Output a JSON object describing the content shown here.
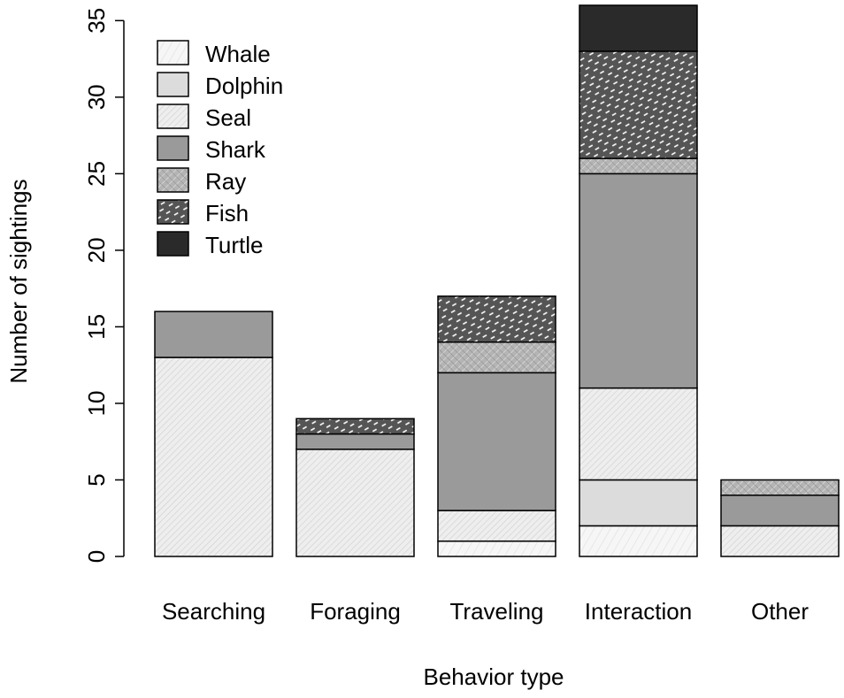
{
  "chart_data": {
    "type": "bar",
    "stacked": true,
    "title": "",
    "xlabel": "Behavior type",
    "ylabel": "Number of sightings",
    "ylim": [
      0,
      36
    ],
    "yticks": [
      "0",
      "5",
      "10",
      "15",
      "20",
      "25",
      "30",
      "35"
    ],
    "grid": false,
    "legend_position": "top-left",
    "categories": [
      "Searching",
      "Foraging",
      "Traveling",
      "Interaction",
      "Other"
    ],
    "series": [
      {
        "name": "Whale",
        "values": [
          0,
          0,
          1,
          2,
          0
        ],
        "color": "#f4f4f4",
        "pattern": "light-hatch"
      },
      {
        "name": "Dolphin",
        "values": [
          0,
          0,
          0,
          3,
          0
        ],
        "color": "#dcdcdc",
        "pattern": "none"
      },
      {
        "name": "Seal",
        "values": [
          13,
          7,
          2,
          6,
          2
        ],
        "color": "#ececec",
        "pattern": "dense-hatch"
      },
      {
        "name": "Shark",
        "values": [
          3,
          1,
          9,
          14,
          2
        ],
        "color": "#9a9a9a",
        "pattern": "none"
      },
      {
        "name": "Ray",
        "values": [
          0,
          0,
          2,
          1,
          1
        ],
        "color": "#b4b4b4",
        "pattern": "crosshatch"
      },
      {
        "name": "Fish",
        "values": [
          0,
          1,
          3,
          7,
          0
        ],
        "color": "#555555",
        "pattern": "white-dashes"
      },
      {
        "name": "Turtle",
        "values": [
          0,
          0,
          0,
          3,
          0
        ],
        "color": "#2a2a2a",
        "pattern": "none"
      }
    ]
  }
}
